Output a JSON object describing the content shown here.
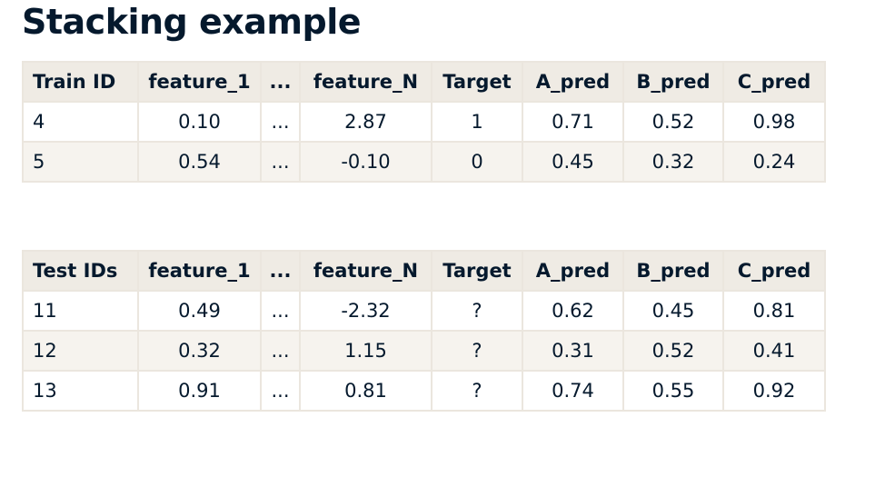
{
  "title": "Stacking example",
  "tables": [
    {
      "header": [
        "Train ID",
        "feature_1",
        "...",
        "feature_N",
        "Target",
        "A_pred",
        "B_pred",
        "C_pred"
      ],
      "rows": [
        [
          "4",
          "0.10",
          "...",
          "2.87",
          "1",
          "0.71",
          "0.52",
          "0.98"
        ],
        [
          "5",
          "0.54",
          "...",
          "-0.10",
          "0",
          "0.45",
          "0.32",
          "0.24"
        ]
      ]
    },
    {
      "header": [
        "Test IDs",
        "feature_1",
        "...",
        "feature_N",
        "Target",
        "A_pred",
        "B_pred",
        "C_pred"
      ],
      "rows": [
        [
          "11",
          "0.49",
          "...",
          "-2.32",
          "?",
          "0.62",
          "0.45",
          "0.81"
        ],
        [
          "12",
          "0.32",
          "...",
          "1.15",
          "?",
          "0.31",
          "0.52",
          "0.41"
        ],
        [
          "13",
          "0.91",
          "...",
          "0.81",
          "?",
          "0.74",
          "0.55",
          "0.92"
        ]
      ]
    }
  ]
}
